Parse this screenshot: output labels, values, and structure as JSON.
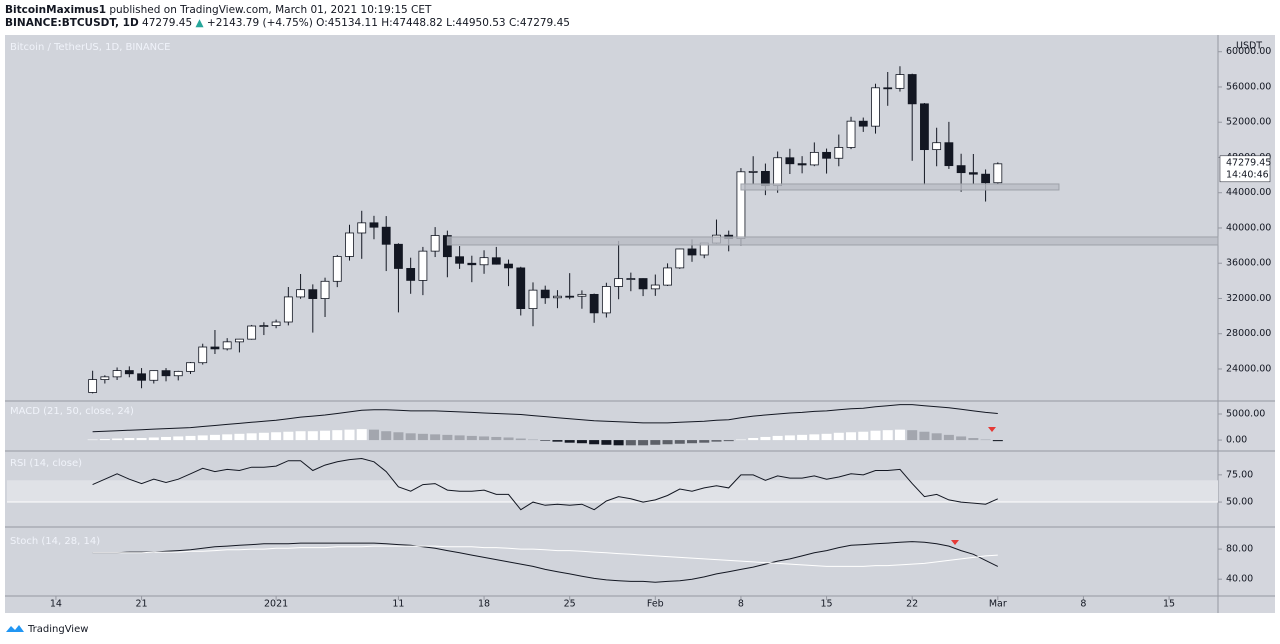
{
  "header": {
    "author": "BitcoinMaximus1",
    "published": "published on TradingView.com, March 01, 2021 10:19:15 CET",
    "symbol": "BINANCE:BTCUSDT, 1D",
    "change": "+2143.79 (+4.75%)",
    "open": "O:45134.11",
    "high": "H:47448.82",
    "low": "L:44950.53",
    "close": "C:47279.45"
  },
  "footer": {
    "brand": "TradingView"
  },
  "chart_data": {
    "type": "candlestick",
    "title": "Bitcoin / TetherUS, 1D, BINANCE",
    "currency": "USDT",
    "countdown": "14:40:46",
    "up_color": "#ffffff",
    "down_color": "#131722",
    "xlim": [
      "2020-12-10",
      "2021-03-19"
    ],
    "xticks": [
      {
        "value": "2020-12-14",
        "label": "14"
      },
      {
        "value": "2020-12-21",
        "label": "21"
      },
      {
        "value": "2021-01-01",
        "label": "2021"
      },
      {
        "value": "2021-01-11",
        "label": "11"
      },
      {
        "value": "2021-01-18",
        "label": "18"
      },
      {
        "value": "2021-01-25",
        "label": "25"
      },
      {
        "value": "2021-02-01",
        "label": "Feb"
      },
      {
        "value": "2021-02-08",
        "label": "8"
      },
      {
        "value": "2021-02-15",
        "label": "15"
      },
      {
        "value": "2021-02-22",
        "label": "22"
      },
      {
        "value": "2021-03-01",
        "label": "Mar"
      },
      {
        "value": "2021-03-08",
        "label": "8"
      },
      {
        "value": "2021-03-15",
        "label": "15"
      }
    ],
    "ylim": [
      20480,
      61670
    ],
    "yticks": [
      {
        "value": 24000,
        "label": "24000.00"
      },
      {
        "value": 28000,
        "label": "28000.00"
      },
      {
        "value": 32000,
        "label": "32000.00"
      },
      {
        "value": 36000,
        "label": "36000.00"
      },
      {
        "value": 40000,
        "label": "40000.00"
      },
      {
        "value": 44000,
        "label": "44000.00"
      },
      {
        "value": 48000,
        "label": "48000.00"
      },
      {
        "value": 52000,
        "label": "52000.00"
      },
      {
        "value": 56000,
        "label": "56000.00"
      },
      {
        "value": 60000,
        "label": "60000.00"
      }
    ],
    "zones": [
      {
        "from": 38071,
        "to": 38979,
        "start": "2021-01-15"
      },
      {
        "from": 44312,
        "to": 44993,
        "start": "2021-02-08",
        "end": "2021-03-06"
      }
    ],
    "x": [
      "2020-12-17",
      "2020-12-18",
      "2020-12-19",
      "2020-12-20",
      "2020-12-21",
      "2020-12-22",
      "2020-12-23",
      "2020-12-24",
      "2020-12-25",
      "2020-12-26",
      "2020-12-27",
      "2020-12-28",
      "2020-12-29",
      "2020-12-30",
      "2020-12-31",
      "2021-01-01",
      "2021-01-02",
      "2021-01-03",
      "2021-01-04",
      "2021-01-05",
      "2021-01-06",
      "2021-01-07",
      "2021-01-08",
      "2021-01-09",
      "2021-01-10",
      "2021-01-11",
      "2021-01-12",
      "2021-01-13",
      "2021-01-14",
      "2021-01-15",
      "2021-01-16",
      "2021-01-17",
      "2021-01-18",
      "2021-01-19",
      "2021-01-20",
      "2021-01-21",
      "2021-01-22",
      "2021-01-23",
      "2021-01-24",
      "2021-01-25",
      "2021-01-26",
      "2021-01-27",
      "2021-01-28",
      "2021-01-29",
      "2021-01-30",
      "2021-01-31",
      "2021-02-01",
      "2021-02-02",
      "2021-02-03",
      "2021-02-04",
      "2021-02-05",
      "2021-02-06",
      "2021-02-07",
      "2021-02-08",
      "2021-02-09",
      "2021-02-10",
      "2021-02-11",
      "2021-02-12",
      "2021-02-13",
      "2021-02-14",
      "2021-02-15",
      "2021-02-16",
      "2021-02-17",
      "2021-02-18",
      "2021-02-19",
      "2021-02-20",
      "2021-02-21",
      "2021-02-22",
      "2021-02-23",
      "2021-02-24",
      "2021-02-25",
      "2021-02-26",
      "2021-02-27",
      "2021-02-28",
      "2021-03-01"
    ],
    "open": [
      21335,
      22797,
      23107,
      23821,
      23455,
      22719,
      23811,
      23232,
      23729,
      24712,
      26493,
      26281,
      27079,
      27385,
      28875,
      28923,
      29331,
      32176,
      33000,
      31989,
      33949,
      36769,
      39432,
      40586,
      40088,
      38150,
      35410,
      34049,
      37371,
      39141,
      36737,
      35995,
      35824,
      36622,
      35901,
      35468,
      30851,
      32950,
      32078,
      32259,
      32254,
      32464,
      30362,
      33368,
      34246,
      34262,
      33092,
      33517,
      35472,
      37620,
      36936,
      38289,
      39181,
      38795,
      46374,
      46420,
      44807,
      47968,
      47298,
      47156,
      48580,
      47911,
      49133,
      52117,
      51552,
      55906,
      55841,
      57413,
      54087,
      48891,
      49677,
      47074,
      46277,
      46104,
      45134.11
    ],
    "high": [
      23800,
      23285,
      24171,
      24295,
      24102,
      23837,
      24100,
      23794,
      24789,
      26867,
      28422,
      27500,
      27410,
      28996,
      29300,
      29600,
      33300,
      34778,
      33600,
      34360,
      36939,
      40365,
      41950,
      41380,
      41350,
      38264,
      36628,
      37850,
      40100,
      39700,
      37950,
      36852,
      37469,
      37850,
      36415,
      35600,
      33826,
      33456,
      32945,
      34875,
      32921,
      32557,
      33783,
      38531,
      34933,
      34288,
      34717,
      35984,
      37662,
      38708,
      38310,
      40955,
      39700,
      46794,
      48142,
      47310,
      48678,
      48985,
      48150,
      49707,
      49010,
      50600,
      52618,
      52530,
      56368,
      57700,
      58352,
      57508,
      54183,
      51374,
      52041,
      48424,
      48394,
      46638,
      47448.82
    ],
    "low": [
      21230,
      22350,
      22750,
      23060,
      21815,
      22353,
      22600,
      22703,
      23433,
      24500,
      25700,
      26101,
      25880,
      27320,
      27850,
      28624,
      28946,
      31962,
      28130,
      29900,
      33288,
      36300,
      36500,
      38720,
      35111,
      30420,
      32531,
      32380,
      36701,
      34408,
      35357,
      33850,
      34800,
      35844,
      33400,
      30071,
      28850,
      31390,
      30900,
      31910,
      30837,
      29241,
      29842,
      31915,
      32825,
      32270,
      32296,
      33418,
      35362,
      36161,
      36570,
      38215,
      37351,
      37988,
      45020,
      43727,
      43994,
      46125,
      46202,
      47014,
      46174,
      47003,
      48947,
      50901,
      50710,
      53863,
      55477,
      47622,
      44892,
      47003,
      46700,
      44106,
      45000,
      43000,
      44950.53
    ],
    "close": [
      22797,
      23107,
      23821,
      23455,
      22719,
      23811,
      23232,
      23729,
      24712,
      26493,
      26281,
      27079,
      27385,
      28875,
      28923,
      29331,
      32178,
      33000,
      31989,
      33949,
      36769,
      39432,
      40582,
      40088,
      38150,
      35404,
      34051,
      37371,
      39144,
      36742,
      35994,
      35828,
      36631,
      35891,
      35468,
      30850,
      32945,
      32078,
      32259,
      32254,
      32467,
      30366,
      33364,
      34252,
      34262,
      33092,
      33526,
      35466,
      37618,
      36936,
      38290,
      39186,
      38795,
      46374,
      46420,
      44807,
      47969,
      47287,
      47153,
      48577,
      47911,
      49133,
      52119,
      51552,
      55906,
      55841,
      57408,
      54087,
      48891,
      49676,
      47073,
      46277,
      46106,
      45135,
      47279.45
    ],
    "indicators": [
      {
        "type": "macd",
        "title": "MACD (21, 50, close, 24)",
        "ylim": [
          -1900,
          7300
        ],
        "yticks": [
          {
            "value": 5000,
            "label": "5000.00"
          },
          {
            "value": 0,
            "label": "0.00"
          }
        ],
        "series": [
          {
            "color": "#131722",
            "values": [
              1600,
              1700,
              1800,
              1900,
              2000,
              2100,
              2200,
              2300,
              2400,
              2600,
              2800,
              3000,
              3200,
              3400,
              3600,
              3800,
              4100,
              4400,
              4600,
              4800,
              5100,
              5400,
              5700,
              5800,
              5800,
              5700,
              5600,
              5600,
              5600,
              5500,
              5400,
              5300,
              5200,
              5100,
              5000,
              4900,
              4700,
              4500,
              4300,
              4100,
              3900,
              3700,
              3600,
              3500,
              3400,
              3300,
              3300,
              3300,
              3400,
              3500,
              3600,
              3800,
              3900,
              4300,
              4600,
              4800,
              5000,
              5200,
              5300,
              5500,
              5600,
              5800,
              6000,
              6100,
              6400,
              6600,
              6800,
              6800,
              6600,
              6400,
              6200,
              5900,
              5600,
              5300,
              5100
            ]
          }
        ],
        "histogram": {
          "colors": {
            "rise_up": "#ffffff",
            "fall_up": "#a3a6ae",
            "rise_down": "#5d6068",
            "fall_down": "#131722"
          },
          "values": [
            100,
            200,
            300,
            400,
            400,
            500,
            600,
            700,
            800,
            900,
            1000,
            1100,
            1200,
            1300,
            1400,
            1500,
            1600,
            1700,
            1700,
            1800,
            1900,
            2000,
            2100,
            2000,
            1700,
            1500,
            1300,
            1200,
            1100,
            1000,
            900,
            800,
            700,
            600,
            500,
            300,
            100,
            -100,
            -300,
            -500,
            -600,
            -800,
            -900,
            -1000,
            -1000,
            -1000,
            -900,
            -800,
            -700,
            -600,
            -500,
            -300,
            -200,
            100,
            400,
            600,
            800,
            900,
            1000,
            1100,
            1200,
            1400,
            1500,
            1600,
            1800,
            1900,
            2000,
            1900,
            1600,
            1300,
            1000,
            700,
            400,
            100,
            -200
          ]
        }
      },
      {
        "type": "line",
        "title": "RSI (14, close)",
        "ylim": [
          28,
          96
        ],
        "yticks": [
          {
            "value": 75,
            "label": "75.00"
          },
          {
            "value": 50,
            "label": "50.00"
          }
        ],
        "band": [
          50,
          70
        ],
        "series": [
          {
            "color": "#131722",
            "values": [
              66,
              71,
              76,
              71,
              67,
              71,
              68,
              71,
              76,
              81,
              78,
              80,
              79,
              82,
              82,
              83,
              88,
              88,
              79,
              84,
              87,
              89,
              90,
              87,
              78,
              64,
              60,
              66,
              67,
              61,
              60,
              60,
              61,
              57,
              57,
              43,
              50,
              47,
              48,
              47,
              48,
              43,
              51,
              55,
              53,
              50,
              52,
              56,
              62,
              60,
              63,
              65,
              63,
              75,
              75,
              70,
              74,
              72,
              72,
              74,
              71,
              73,
              76,
              75,
              79,
              79,
              80,
              67,
              55,
              57,
              52,
              50,
              49,
              48,
              53
            ]
          }
        ]
      },
      {
        "type": "line",
        "title": "Stoch (14, 28, 14)",
        "ylim": [
          19,
          108
        ],
        "yticks": [
          {
            "value": 80,
            "label": "80.00"
          },
          {
            "value": 40,
            "label": "40.00"
          }
        ],
        "series": [
          {
            "color": "#131722",
            "values": [
              75,
              75,
              75,
              76,
              76,
              76,
              77,
              78,
              79,
              81,
              83,
              84,
              85,
              86,
              87,
              87,
              87,
              88,
              88,
              88,
              88,
              88,
              88,
              88,
              87,
              86,
              85,
              83,
              81,
              78,
              75,
              72,
              69,
              66,
              63,
              60,
              57,
              53,
              50,
              47,
              44,
              41,
              39,
              38,
              37,
              37,
              36,
              37,
              38,
              40,
              43,
              47,
              50,
              53,
              56,
              60,
              64,
              67,
              71,
              75,
              78,
              82,
              85,
              86,
              87,
              88,
              89,
              90,
              89,
              87,
              84,
              78,
              73,
              65,
              57
            ]
          },
          {
            "color": "#ffffff",
            "values": [
              75,
              75,
              75,
              75,
              75,
              76,
              76,
              76,
              77,
              77,
              78,
              79,
              79,
              80,
              80,
              81,
              81,
              82,
              82,
              82,
              83,
              83,
              83,
              84,
              84,
              84,
              84,
              84,
              84,
              83,
              83,
              83,
              82,
              82,
              81,
              80,
              80,
              79,
              78,
              78,
              77,
              76,
              75,
              74,
              73,
              72,
              71,
              70,
              69,
              68,
              67,
              66,
              65,
              64,
              63,
              62,
              61,
              60,
              59,
              58,
              57,
              57,
              57,
              57,
              58,
              58,
              59,
              60,
              61,
              63,
              65,
              67,
              69,
              71,
              72
            ]
          }
        ]
      }
    ]
  }
}
